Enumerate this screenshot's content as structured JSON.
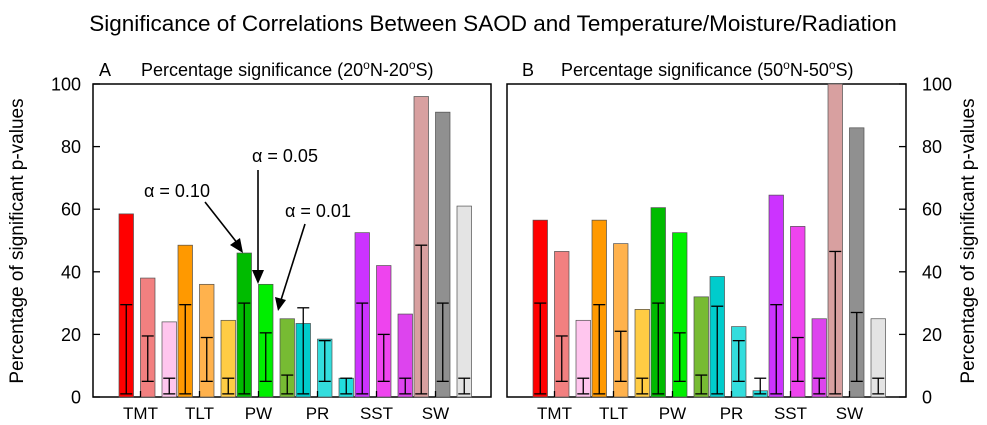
{
  "title": "Significance of Correlations Between SAOD and Temperature/Moisture/Radiation",
  "ylabel_left": "Percentage of significant p-values",
  "ylabel_right": "Percentage of significant p-values",
  "chart_data": [
    {
      "type": "bar",
      "panel_letter": "A",
      "title_main": "Percentage significance (20",
      "title_deg1": "o",
      "title_mid": "N-20",
      "title_deg2": "o",
      "title_end": "S)",
      "ylim": [
        0,
        100
      ],
      "yticks": [
        0,
        20,
        40,
        60,
        80,
        100
      ],
      "categories": [
        "TMT",
        "TLT",
        "PW",
        "PR",
        "SST",
        "SW"
      ],
      "alphas": [
        "α = 0.10",
        "α = 0.05",
        "α = 0.01"
      ],
      "values": [
        [
          58.5,
          38,
          24
        ],
        [
          48.5,
          36,
          24.5
        ],
        [
          46,
          36,
          25
        ],
        [
          23.5,
          18.5,
          6
        ],
        [
          52.5,
          42,
          26.5
        ],
        [
          96,
          91,
          61
        ]
      ],
      "null_bounds": [
        [
          [
            1,
            29.5
          ],
          [
            5,
            19.5
          ],
          [
            1,
            6
          ]
        ],
        [
          [
            1,
            29.5
          ],
          [
            5,
            19
          ],
          [
            1,
            6
          ]
        ],
        [
          [
            1,
            30
          ],
          [
            5,
            20.5
          ],
          [
            1,
            7
          ]
        ],
        [
          [
            1,
            28.5
          ],
          [
            5,
            18
          ],
          [
            1,
            6
          ]
        ],
        [
          [
            1,
            30
          ],
          [
            5,
            20
          ],
          [
            1,
            6
          ]
        ],
        [
          [
            1,
            48.5
          ],
          [
            5,
            30
          ],
          [
            1,
            6
          ]
        ]
      ],
      "annotations": [
        "α = 0.10",
        "α = 0.05",
        "α = 0.01"
      ]
    },
    {
      "type": "bar",
      "panel_letter": "B",
      "title_main": "Percentage significance (50",
      "title_deg1": "o",
      "title_mid": "N-50",
      "title_deg2": "o",
      "title_end": "S)",
      "ylim": [
        0,
        100
      ],
      "yticks": [
        0,
        20,
        40,
        60,
        80,
        100
      ],
      "categories": [
        "TMT",
        "TLT",
        "PW",
        "PR",
        "SST",
        "SW"
      ],
      "values": [
        [
          56.5,
          46.5,
          24.5
        ],
        [
          56.5,
          49,
          28
        ],
        [
          60.5,
          52.5,
          32
        ],
        [
          38.5,
          22.5,
          2
        ],
        [
          64.5,
          54.5,
          25
        ],
        [
          100,
          86,
          25
        ]
      ],
      "null_bounds": [
        [
          [
            1,
            30
          ],
          [
            5,
            19.5
          ],
          [
            1,
            6
          ]
        ],
        [
          [
            1,
            29.5
          ],
          [
            5,
            21
          ],
          [
            1,
            6
          ]
        ],
        [
          [
            1,
            30
          ],
          [
            5,
            20.5
          ],
          [
            1,
            7
          ]
        ],
        [
          [
            1,
            29
          ],
          [
            5,
            18
          ],
          [
            1,
            6
          ]
        ],
        [
          [
            1,
            29.5
          ],
          [
            5,
            19
          ],
          [
            1,
            6
          ]
        ],
        [
          [
            1,
            46.5
          ],
          [
            5,
            27
          ],
          [
            1,
            6
          ]
        ]
      ]
    }
  ],
  "colors": {
    "TMT": [
      "#ff0000",
      "#f28080",
      "#ffc6ee"
    ],
    "TLT": [
      "#ff9900",
      "#ffb24d",
      "#ffcc44"
    ],
    "PW": [
      "#00bb00",
      "#00ee00",
      "#77bb33"
    ],
    "PR": [
      "#00cccc",
      "#33dddd",
      "#22dddd"
    ],
    "SST": [
      "#cc33ff",
      "#ee44ee",
      "#dd44ee"
    ],
    "SW": [
      "#d8a0a0",
      "#909090",
      "#e4e4e4"
    ]
  }
}
